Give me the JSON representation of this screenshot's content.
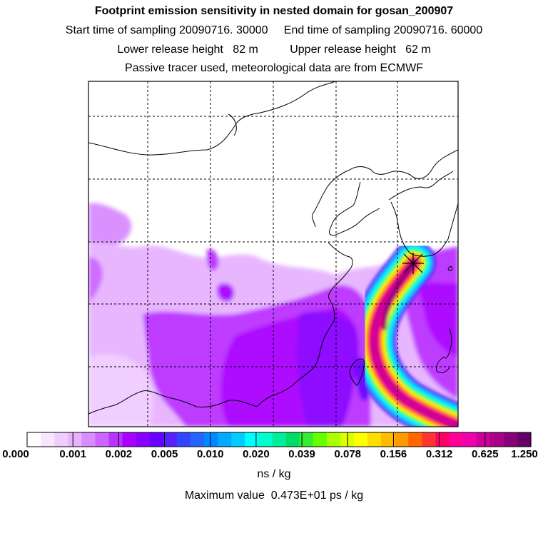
{
  "header": {
    "title": "Footprint emission sensitivity in nested domain for gosan_200907",
    "line2": "Start time of sampling 20090716. 30000     End time of sampling 20090716. 60000",
    "line3": "Lower release height   82 m          Upper release height   62 m",
    "line4": "Passive tracer used, meteorological data are from ECMWF"
  },
  "colorbar": {
    "labels": [
      "0.000",
      "0.001",
      "0.002",
      "0.005",
      "0.010",
      "0.020",
      "0.039",
      "0.078",
      "0.156",
      "0.312",
      "0.625",
      "1.250"
    ],
    "colors": [
      "#ffffff",
      "#f8e6ff",
      "#f0ccff",
      "#e7b3ff",
      "#d98cff",
      "#cc66ff",
      "#bb33ff",
      "#aa00ff",
      "#8800ff",
      "#6600ff",
      "#5522ff",
      "#3344ff",
      "#2266ff",
      "#0088ff",
      "#00aaff",
      "#00ccff",
      "#00ffff",
      "#00ffcc",
      "#00ee99",
      "#00dd66",
      "#33ee33",
      "#66ff00",
      "#aaff00",
      "#ddff00",
      "#ffff00",
      "#ffdd00",
      "#ffbb00",
      "#ff9900",
      "#ff6600",
      "#ff3333",
      "#ff0066",
      "#ff0099",
      "#ee00aa",
      "#cc0099",
      "#aa0088",
      "#880077",
      "#660066"
    ],
    "unit": "ns / kg"
  },
  "footer": {
    "max_value": "Maximum value  0.473E+01 ps / kg"
  }
}
